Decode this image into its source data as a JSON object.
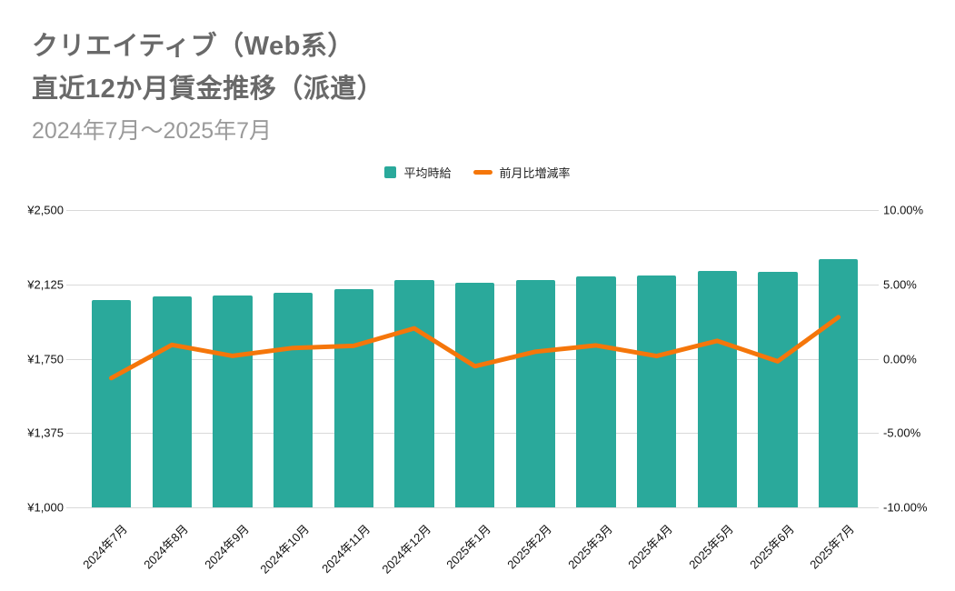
{
  "header": {
    "title_line1": "クリエイティブ（Web系）",
    "title_line2": "直近12か月賃金推移（派遣）",
    "subtitle": "2024年7月～2025年7月"
  },
  "legend": {
    "bar_label": "平均時給",
    "line_label": "前月比増減率"
  },
  "chart_data": {
    "type": "combo_bar_line",
    "title": "クリエイティブ（Web系）直近12か月賃金推移（派遣）",
    "subtitle": "2024年7月～2025年7月",
    "legend_position": "top-center",
    "grid": true,
    "categories": [
      "2024年7月",
      "2024年8月",
      "2024年9月",
      "2024年10月",
      "2024年11月",
      "2024年12月",
      "2025年1月",
      "2025年2月",
      "2025年3月",
      "2025年4月",
      "2025年5月",
      "2025年6月",
      "2025年7月"
    ],
    "series": [
      {
        "name": "平均時給",
        "type": "bar",
        "axis": "left",
        "unit": "¥",
        "color": "#2aa99b",
        "values": [
          2047,
          2066,
          2070,
          2085,
          2103,
          2146,
          2135,
          2145,
          2164,
          2168,
          2194,
          2190,
          2251
        ]
      },
      {
        "name": "前月比増減率",
        "type": "line",
        "axis": "right",
        "unit": "%",
        "color": "#f5760a",
        "values": [
          -1.3,
          0.93,
          0.19,
          0.72,
          0.86,
          2.04,
          -0.51,
          0.47,
          0.89,
          0.18,
          1.2,
          -0.18,
          2.79
        ]
      }
    ],
    "left_axis": {
      "min": 1000,
      "max": 2500,
      "tick_labels": [
        "¥2,500",
        "¥2,125",
        "¥1,750",
        "¥1,375",
        "¥1,000"
      ]
    },
    "right_axis": {
      "min": -10,
      "max": 10,
      "tick_labels": [
        "10.00%",
        "5.00%",
        "0.00%",
        "-5.00%",
        "-10.00%"
      ]
    }
  },
  "colors": {
    "background": "#ffffff",
    "bar": "#2aa99b",
    "line": "#f5760a",
    "gridline": "#d9d9d9",
    "title_text": "#696969",
    "subtitle_text": "#9a9a9a",
    "axis_text": "#111111"
  }
}
